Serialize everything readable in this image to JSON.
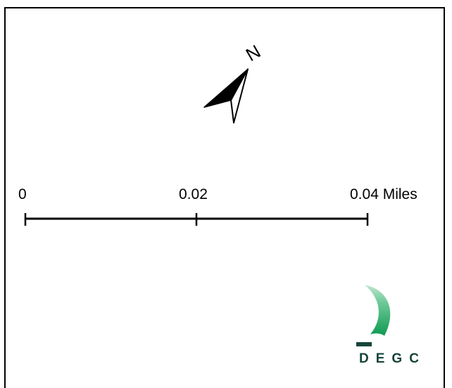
{
  "north_arrow": {
    "label": "N",
    "icon": "north-arrow-icon"
  },
  "scale_bar": {
    "labels": [
      "0",
      "0.02",
      "0.04 Miles"
    ]
  },
  "logo": {
    "text": "DEGC",
    "icon": "degc-logo",
    "colors": {
      "green": "#1aa05a",
      "dark": "#17453a"
    }
  }
}
